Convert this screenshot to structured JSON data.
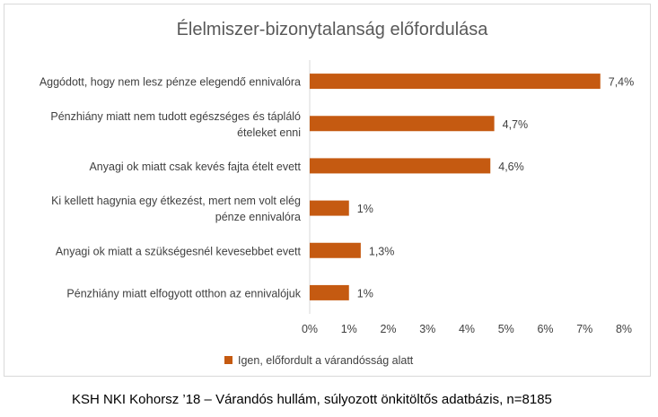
{
  "chart_data": {
    "type": "bar",
    "orientation": "horizontal",
    "title": "Élelmiszer-bizonytalanság előfordulása",
    "categories": [
      [
        "Aggódott, hogy nem lesz pénze elegendő ennivalóra"
      ],
      [
        "Pénzhiány miatt nem tudott egészséges és tápláló",
        "ételeket enni"
      ],
      [
        "Anyagi ok miatt csak kevés fajta ételt evett"
      ],
      [
        "Ki kellett hagynia egy étkezést, mert nem volt elég",
        "pénze ennivalóra"
      ],
      [
        "Anyagi ok miatt a szükségesnél kevesebbet evett"
      ],
      [
        "Pénzhiány miatt elfogyott otthon az ennivalójuk"
      ]
    ],
    "series": [
      {
        "name": "Igen, előfordult a várandósság alatt",
        "values": [
          7.4,
          4.7,
          4.6,
          1.0,
          1.3,
          1.0
        ],
        "data_labels": [
          "7,4%",
          "4,7%",
          "4,6%",
          "1%",
          "1,3%",
          "1%"
        ],
        "color": "#c55a11"
      }
    ],
    "xlim": [
      0,
      8
    ],
    "x_ticks": [
      0,
      1,
      2,
      3,
      4,
      5,
      6,
      7,
      8
    ],
    "x_tick_labels": [
      "0%",
      "1%",
      "2%",
      "3%",
      "4%",
      "5%",
      "6%",
      "7%",
      "8%"
    ],
    "xlabel": "",
    "ylabel": "",
    "grid": false,
    "legend_position": "bottom"
  },
  "source_note": "KSH NKI Kohorsz ’18 – Várandós hullám, súlyozott önkitöltős adatbázis, n=8185"
}
